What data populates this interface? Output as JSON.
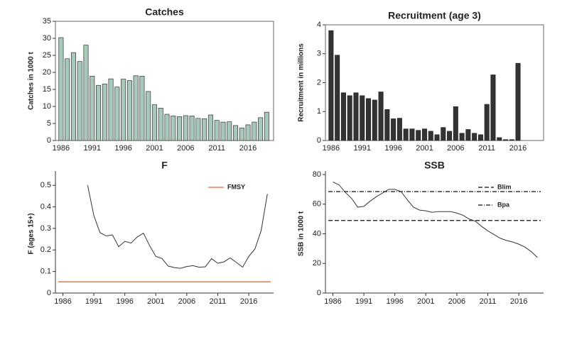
{
  "chart_data": [
    {
      "type": "bar",
      "title": "Catches",
      "y_label": "Catches in 1000 t",
      "frame": "box",
      "color": "#a8c9b9",
      "edge_color": "#333333",
      "categories": [
        "1986",
        null,
        null,
        null,
        null,
        "1991",
        null,
        null,
        null,
        null,
        "1996",
        null,
        null,
        null,
        null,
        "2001",
        null,
        null,
        null,
        null,
        "2006",
        null,
        null,
        null,
        null,
        "2011",
        null,
        null,
        null,
        null,
        "2016",
        null,
        null,
        null
      ],
      "values": [
        30.2,
        24,
        25.8,
        23.2,
        28,
        18.9,
        16.2,
        16.6,
        18.1,
        15.7,
        18,
        17.6,
        19,
        18.9,
        14.4,
        10.5,
        9.5,
        7.7,
        7.2,
        7.0,
        7.3,
        7.2,
        6.5,
        6.4,
        7.5,
        5.9,
        5.4,
        5.5,
        4.4,
        3.7,
        4.6,
        5.4,
        6.7,
        8.3
      ],
      "ylim": [
        0,
        35
      ],
      "yticks": [
        0,
        5,
        10,
        15,
        20,
        25,
        30,
        35
      ]
    },
    {
      "type": "bar",
      "title": "Recruitment (age 3)",
      "y_label": "Recruitment in millions",
      "frame": "box",
      "color": "#333333",
      "edge_color": "#222222",
      "categories": [
        "1986",
        null,
        null,
        null,
        null,
        "1991",
        null,
        null,
        null,
        null,
        "1996",
        null,
        null,
        null,
        null,
        "2001",
        null,
        null,
        null,
        null,
        "2006",
        null,
        null,
        null,
        null,
        "2011",
        null,
        null,
        null,
        null,
        "2016",
        null,
        null,
        null
      ],
      "values": [
        3.8,
        2.95,
        1.65,
        1.55,
        1.65,
        1.55,
        1.45,
        1.4,
        1.68,
        1.07,
        0.75,
        0.77,
        0.4,
        0.4,
        0.35,
        0.4,
        0.32,
        0.2,
        0.45,
        0.32,
        1.17,
        0.25,
        0.38,
        0.25,
        0.2,
        1.25,
        2.27,
        0.1,
        0.03,
        0.03,
        2.67,
        null,
        null,
        null
      ],
      "ylim": [
        0,
        4
      ],
      "yticks": [
        0,
        1,
        2,
        3,
        4
      ]
    },
    {
      "type": "line",
      "title": "F",
      "y_label": "F (ages 15+)",
      "frame": "axes",
      "legend": "top right",
      "x": [
        1990,
        1991,
        1992,
        1993,
        1994,
        1995,
        1996,
        1997,
        1998,
        1999,
        2000,
        2001,
        2002,
        2003,
        2004,
        2005,
        2006,
        2007,
        2008,
        2009,
        2010,
        2011,
        2012,
        2013,
        2014,
        2015,
        2016,
        2017,
        2018,
        2019
      ],
      "series": [
        {
          "color": "#333333",
          "values": [
            0.5,
            0.36,
            0.28,
            0.265,
            0.27,
            0.215,
            0.24,
            0.232,
            0.26,
            0.278,
            0.22,
            0.17,
            0.16,
            0.125,
            0.118,
            0.115,
            0.123,
            0.127,
            0.12,
            0.122,
            0.16,
            0.138,
            0.145,
            0.163,
            0.142,
            0.12,
            0.17,
            0.205,
            0.29,
            0.46
          ]
        }
      ],
      "ref_lines": [
        {
          "name": "FMSY",
          "value": 0.052,
          "color": "#e8683a",
          "style": "solid"
        }
      ],
      "xlim": [
        1984.8,
        2020
      ],
      "xticks": [
        1986,
        1991,
        1996,
        2001,
        2006,
        2011,
        2016
      ],
      "ylim": [
        0,
        0.55
      ],
      "yticks": [
        0,
        0.1,
        0.2,
        0.3,
        0.4,
        0.5
      ]
    },
    {
      "type": "line",
      "title": "SSB",
      "y_label": "SSB in 1000 t",
      "frame": "axes",
      "legend": "top right",
      "x": [
        1986,
        1987,
        1988,
        1989,
        1990,
        1991,
        1992,
        1993,
        1994,
        1995,
        1996,
        1997,
        1998,
        1999,
        2000,
        2001,
        2002,
        2003,
        2004,
        2005,
        2006,
        2007,
        2008,
        2009,
        2010,
        2011,
        2012,
        2013,
        2014,
        2015,
        2016,
        2017,
        2018,
        2019
      ],
      "series": [
        {
          "color": "#333333",
          "values": [
            75,
            73,
            68,
            64,
            58,
            58.5,
            62,
            65,
            67.5,
            70,
            70,
            68.5,
            63,
            58,
            56,
            55.5,
            54.5,
            55,
            55,
            55,
            54,
            52.5,
            50,
            48.5,
            45,
            42,
            39.5,
            37,
            35.5,
            34.5,
            33,
            31,
            28,
            24
          ]
        }
      ],
      "ref_lines": [
        {
          "name": "Blim",
          "value": 49,
          "color": "#111111",
          "style": "dashed"
        },
        {
          "name": "Bpa",
          "value": 68.5,
          "color": "#111111",
          "style": "dashdot"
        }
      ],
      "xlim": [
        1984.8,
        2020
      ],
      "xticks": [
        1986,
        1991,
        1996,
        2001,
        2006,
        2011,
        2016
      ],
      "ylim": [
        0,
        80
      ],
      "yticks": [
        0,
        20,
        40,
        60,
        80
      ]
    }
  ]
}
